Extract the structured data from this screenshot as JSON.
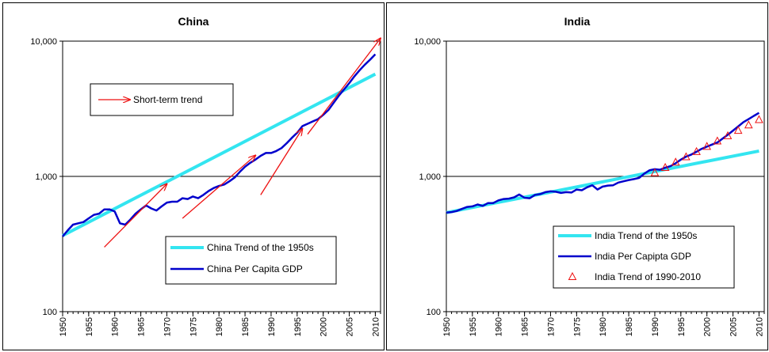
{
  "chart_data": [
    {
      "type": "line",
      "title": "China",
      "yscale": "log",
      "ylim": [
        100,
        10000
      ],
      "xlim": [
        1950,
        2011
      ],
      "y_ticks": [
        {
          "value": 100,
          "label": "100"
        },
        {
          "value": 1000,
          "label": "1,000"
        },
        {
          "value": 10000,
          "label": "10,000"
        }
      ],
      "x_ticks": [
        "1950",
        "1955",
        "1960",
        "1965",
        "1970",
        "1975",
        "1980",
        "1985",
        "1990",
        "1995",
        "2000",
        "2005",
        "2010"
      ],
      "gridlines": [
        1000
      ],
      "legend_position": "bottom-center",
      "series": [
        {
          "name": "China Trend of the 1950s",
          "color": "#33e5f0",
          "x": [
            1950,
            2010
          ],
          "values": [
            365,
            5700
          ]
        },
        {
          "name": "China Per Capita GDP",
          "color": "#0000cc",
          "x": [
            1950,
            1951,
            1952,
            1953,
            1954,
            1955,
            1956,
            1957,
            1958,
            1959,
            1960,
            1961,
            1962,
            1963,
            1964,
            1965,
            1966,
            1967,
            1968,
            1969,
            1970,
            1971,
            1972,
            1973,
            1974,
            1975,
            1976,
            1977,
            1978,
            1979,
            1980,
            1981,
            1982,
            1983,
            1984,
            1985,
            1986,
            1987,
            1988,
            1989,
            1990,
            1991,
            1992,
            1993,
            1994,
            1995,
            1996,
            1997,
            1998,
            1999,
            2000,
            2001,
            2002,
            2003,
            2004,
            2005,
            2006,
            2007,
            2008,
            2009,
            2010
          ],
          "values": [
            360,
            400,
            440,
            450,
            460,
            490,
            520,
            530,
            570,
            570,
            550,
            450,
            440,
            480,
            530,
            570,
            610,
            580,
            560,
            600,
            640,
            650,
            650,
            690,
            680,
            710,
            690,
            730,
            780,
            820,
            850,
            870,
            920,
            980,
            1080,
            1180,
            1260,
            1330,
            1420,
            1490,
            1490,
            1540,
            1620,
            1760,
            1930,
            2100,
            2350,
            2450,
            2550,
            2650,
            2850,
            3100,
            3500,
            3950,
            4400,
            4900,
            5500,
            6100,
            6700,
            7300,
            8000
          ]
        }
      ],
      "trend_arrows": {
        "name": "Short-term trend",
        "color": "#ee1111",
        "segments": [
          {
            "x1": 1958,
            "y1": 300,
            "x2": 1970,
            "y2": 880
          },
          {
            "x1": 1973,
            "y1": 490,
            "x2": 1987,
            "y2": 1430
          },
          {
            "x1": 1988,
            "y1": 730,
            "x2": 1996,
            "y2": 2250
          },
          {
            "x1": 1997,
            "y1": 2050,
            "x2": 2011,
            "y2": 10500
          }
        ]
      }
    },
    {
      "type": "line",
      "title": "India",
      "yscale": "log",
      "ylim": [
        100,
        10000
      ],
      "xlim": [
        1950,
        2011
      ],
      "y_ticks": [
        {
          "value": 100,
          "label": "100"
        },
        {
          "value": 1000,
          "label": "1,000"
        },
        {
          "value": 10000,
          "label": "10,000"
        }
      ],
      "x_ticks": [
        "1950",
        "1955",
        "1960",
        "1965",
        "1970",
        "1975",
        "1980",
        "1985",
        "1990",
        "1995",
        "2000",
        "2005",
        "2010"
      ],
      "gridlines": [
        1000
      ],
      "legend_position": "bottom-right",
      "series": [
        {
          "name": "India Trend of the 1950s",
          "color": "#33e5f0",
          "x": [
            1950,
            2010
          ],
          "values": [
            540,
            1540
          ]
        },
        {
          "name": "India Per Capipta GDP",
          "color": "#0000cc",
          "x": [
            1950,
            1951,
            1952,
            1953,
            1954,
            1955,
            1956,
            1957,
            1958,
            1959,
            1960,
            1961,
            1962,
            1963,
            1964,
            1965,
            1966,
            1967,
            1968,
            1969,
            1970,
            1971,
            1972,
            1973,
            1974,
            1975,
            1976,
            1977,
            1978,
            1979,
            1980,
            1981,
            1982,
            1983,
            1984,
            1985,
            1986,
            1987,
            1988,
            1989,
            1990,
            1991,
            1992,
            1993,
            1994,
            1995,
            1996,
            1997,
            1998,
            1999,
            2000,
            2001,
            2002,
            2003,
            2004,
            2005,
            2006,
            2007,
            2008,
            2009,
            2010
          ],
          "values": [
            540,
            545,
            555,
            575,
            595,
            600,
            620,
            605,
            635,
            635,
            665,
            680,
            685,
            700,
            735,
            695,
            690,
            730,
            740,
            765,
            775,
            770,
            755,
            765,
            760,
            800,
            790,
            830,
            860,
            800,
            840,
            855,
            860,
            900,
            920,
            940,
            955,
            975,
            1050,
            1110,
            1130,
            1120,
            1160,
            1190,
            1250,
            1330,
            1400,
            1450,
            1520,
            1600,
            1660,
            1720,
            1780,
            1900,
            2030,
            2180,
            2340,
            2520,
            2650,
            2800,
            2950
          ]
        },
        {
          "name": "India Trend of 1990-2010",
          "color": "#ee1111",
          "marker": "triangle",
          "x": [
            1990,
            1992,
            1994,
            1996,
            1998,
            2000,
            2002,
            2004,
            2006,
            2008,
            2010
          ],
          "values": [
            1060,
            1160,
            1270,
            1390,
            1520,
            1660,
            1820,
            1990,
            2180,
            2390,
            2620
          ]
        }
      ]
    }
  ]
}
